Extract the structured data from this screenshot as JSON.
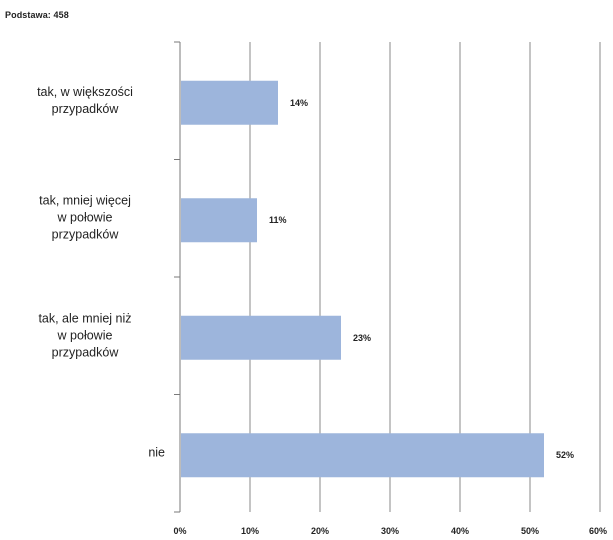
{
  "note": "Podstawa: 458",
  "chart_data": {
    "type": "bar",
    "orientation": "horizontal",
    "categories": [
      "tak, w większości\nprzypadków",
      "tak, mniej więcej\nw połowie\nprzypadków",
      "tak, ale mniej niż\nw połowie\nprzypadków",
      "nie"
    ],
    "values": [
      14,
      11,
      23,
      52
    ],
    "value_labels": [
      "14%",
      "11%",
      "23%",
      "52%"
    ],
    "xlim": [
      0,
      60
    ],
    "xticks": [
      0,
      10,
      20,
      30,
      40,
      50,
      60
    ],
    "xtick_labels": [
      "0%",
      "10%",
      "20%",
      "30%",
      "40%",
      "50%",
      "60%"
    ],
    "grid": true,
    "bar_color": "#9db5dc",
    "grid_color": "#8a8a8a"
  }
}
